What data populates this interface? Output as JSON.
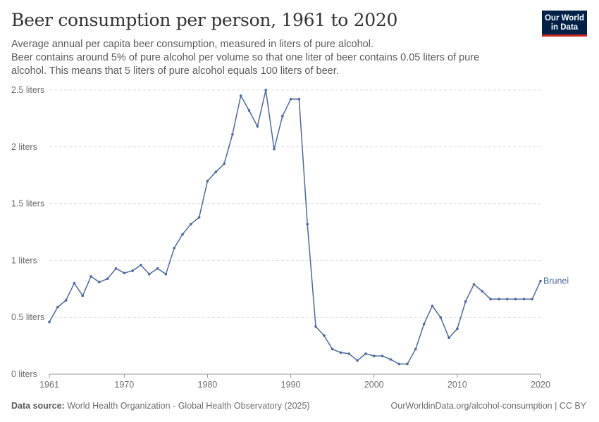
{
  "header": {
    "title": "Beer consumption per person, 1961 to 2020",
    "subtitle": "Average annual per capita beer consumption, measured in liters of pure alcohol.",
    "subtitle_line2": "Beer contains around 5% of pure alcohol per volume so that one liter of beer contains 0.05 liters of pure alcohol. This means that 5 liters of pure alcohol equals 100 liters of beer."
  },
  "logo": {
    "line1": "Our World",
    "line2": "in Data"
  },
  "footer": {
    "source_label": "Data source:",
    "source_text": "World Health Organization - Global Health Observatory (2025)",
    "link_text": "OurWorldinData.org/alcohol-consumption | CC BY"
  },
  "colors": {
    "series": "#4c6a9c",
    "grid": "#dddddd",
    "logo_bg": "#002147",
    "logo_accent": "#ce261e"
  },
  "chart_data": {
    "type": "line",
    "title": "Beer consumption per person, 1961 to 2020",
    "xlabel": "",
    "ylabel": "",
    "xlim": [
      1961,
      2020
    ],
    "ylim": [
      0,
      2.5
    ],
    "grid": "horizontal dashed",
    "x_ticks": [
      1961,
      1970,
      1980,
      1990,
      2000,
      2010,
      2020
    ],
    "y_ticks": [
      0,
      0.5,
      1,
      1.5,
      2,
      2.5
    ],
    "y_tick_labels": [
      "0 liters",
      "0.5 liters",
      "1 liters",
      "1.5 liters",
      "2 liters",
      "2.5 liters"
    ],
    "series": [
      {
        "name": "Brunei",
        "color": "#4c6a9c",
        "x": [
          1961,
          1962,
          1963,
          1964,
          1965,
          1966,
          1967,
          1968,
          1969,
          1970,
          1971,
          1972,
          1973,
          1974,
          1975,
          1976,
          1977,
          1978,
          1979,
          1980,
          1981,
          1982,
          1983,
          1984,
          1985,
          1986,
          1987,
          1988,
          1989,
          1990,
          1991,
          1992,
          1993,
          1994,
          1995,
          1996,
          1997,
          1998,
          1999,
          2000,
          2001,
          2002,
          2003,
          2004,
          2005,
          2006,
          2007,
          2008,
          2009,
          2010,
          2011,
          2012,
          2013,
          2014,
          2015,
          2016,
          2017,
          2018,
          2019,
          2020
        ],
        "y": [
          0.46,
          0.59,
          0.65,
          0.8,
          0.69,
          0.86,
          0.81,
          0.84,
          0.93,
          0.89,
          0.91,
          0.96,
          0.88,
          0.93,
          0.88,
          1.11,
          1.23,
          1.32,
          1.38,
          1.7,
          1.78,
          1.85,
          2.11,
          2.45,
          2.32,
          2.18,
          2.5,
          1.98,
          2.27,
          2.42,
          2.42,
          1.32,
          0.42,
          0.34,
          0.22,
          0.19,
          0.18,
          0.12,
          0.18,
          0.16,
          0.16,
          0.13,
          0.09,
          0.09,
          0.22,
          0.44,
          0.6,
          0.5,
          0.32,
          0.4,
          0.64,
          0.79,
          0.73,
          0.66,
          0.66,
          0.66,
          0.66,
          0.66,
          0.66,
          0.82
        ]
      }
    ]
  }
}
